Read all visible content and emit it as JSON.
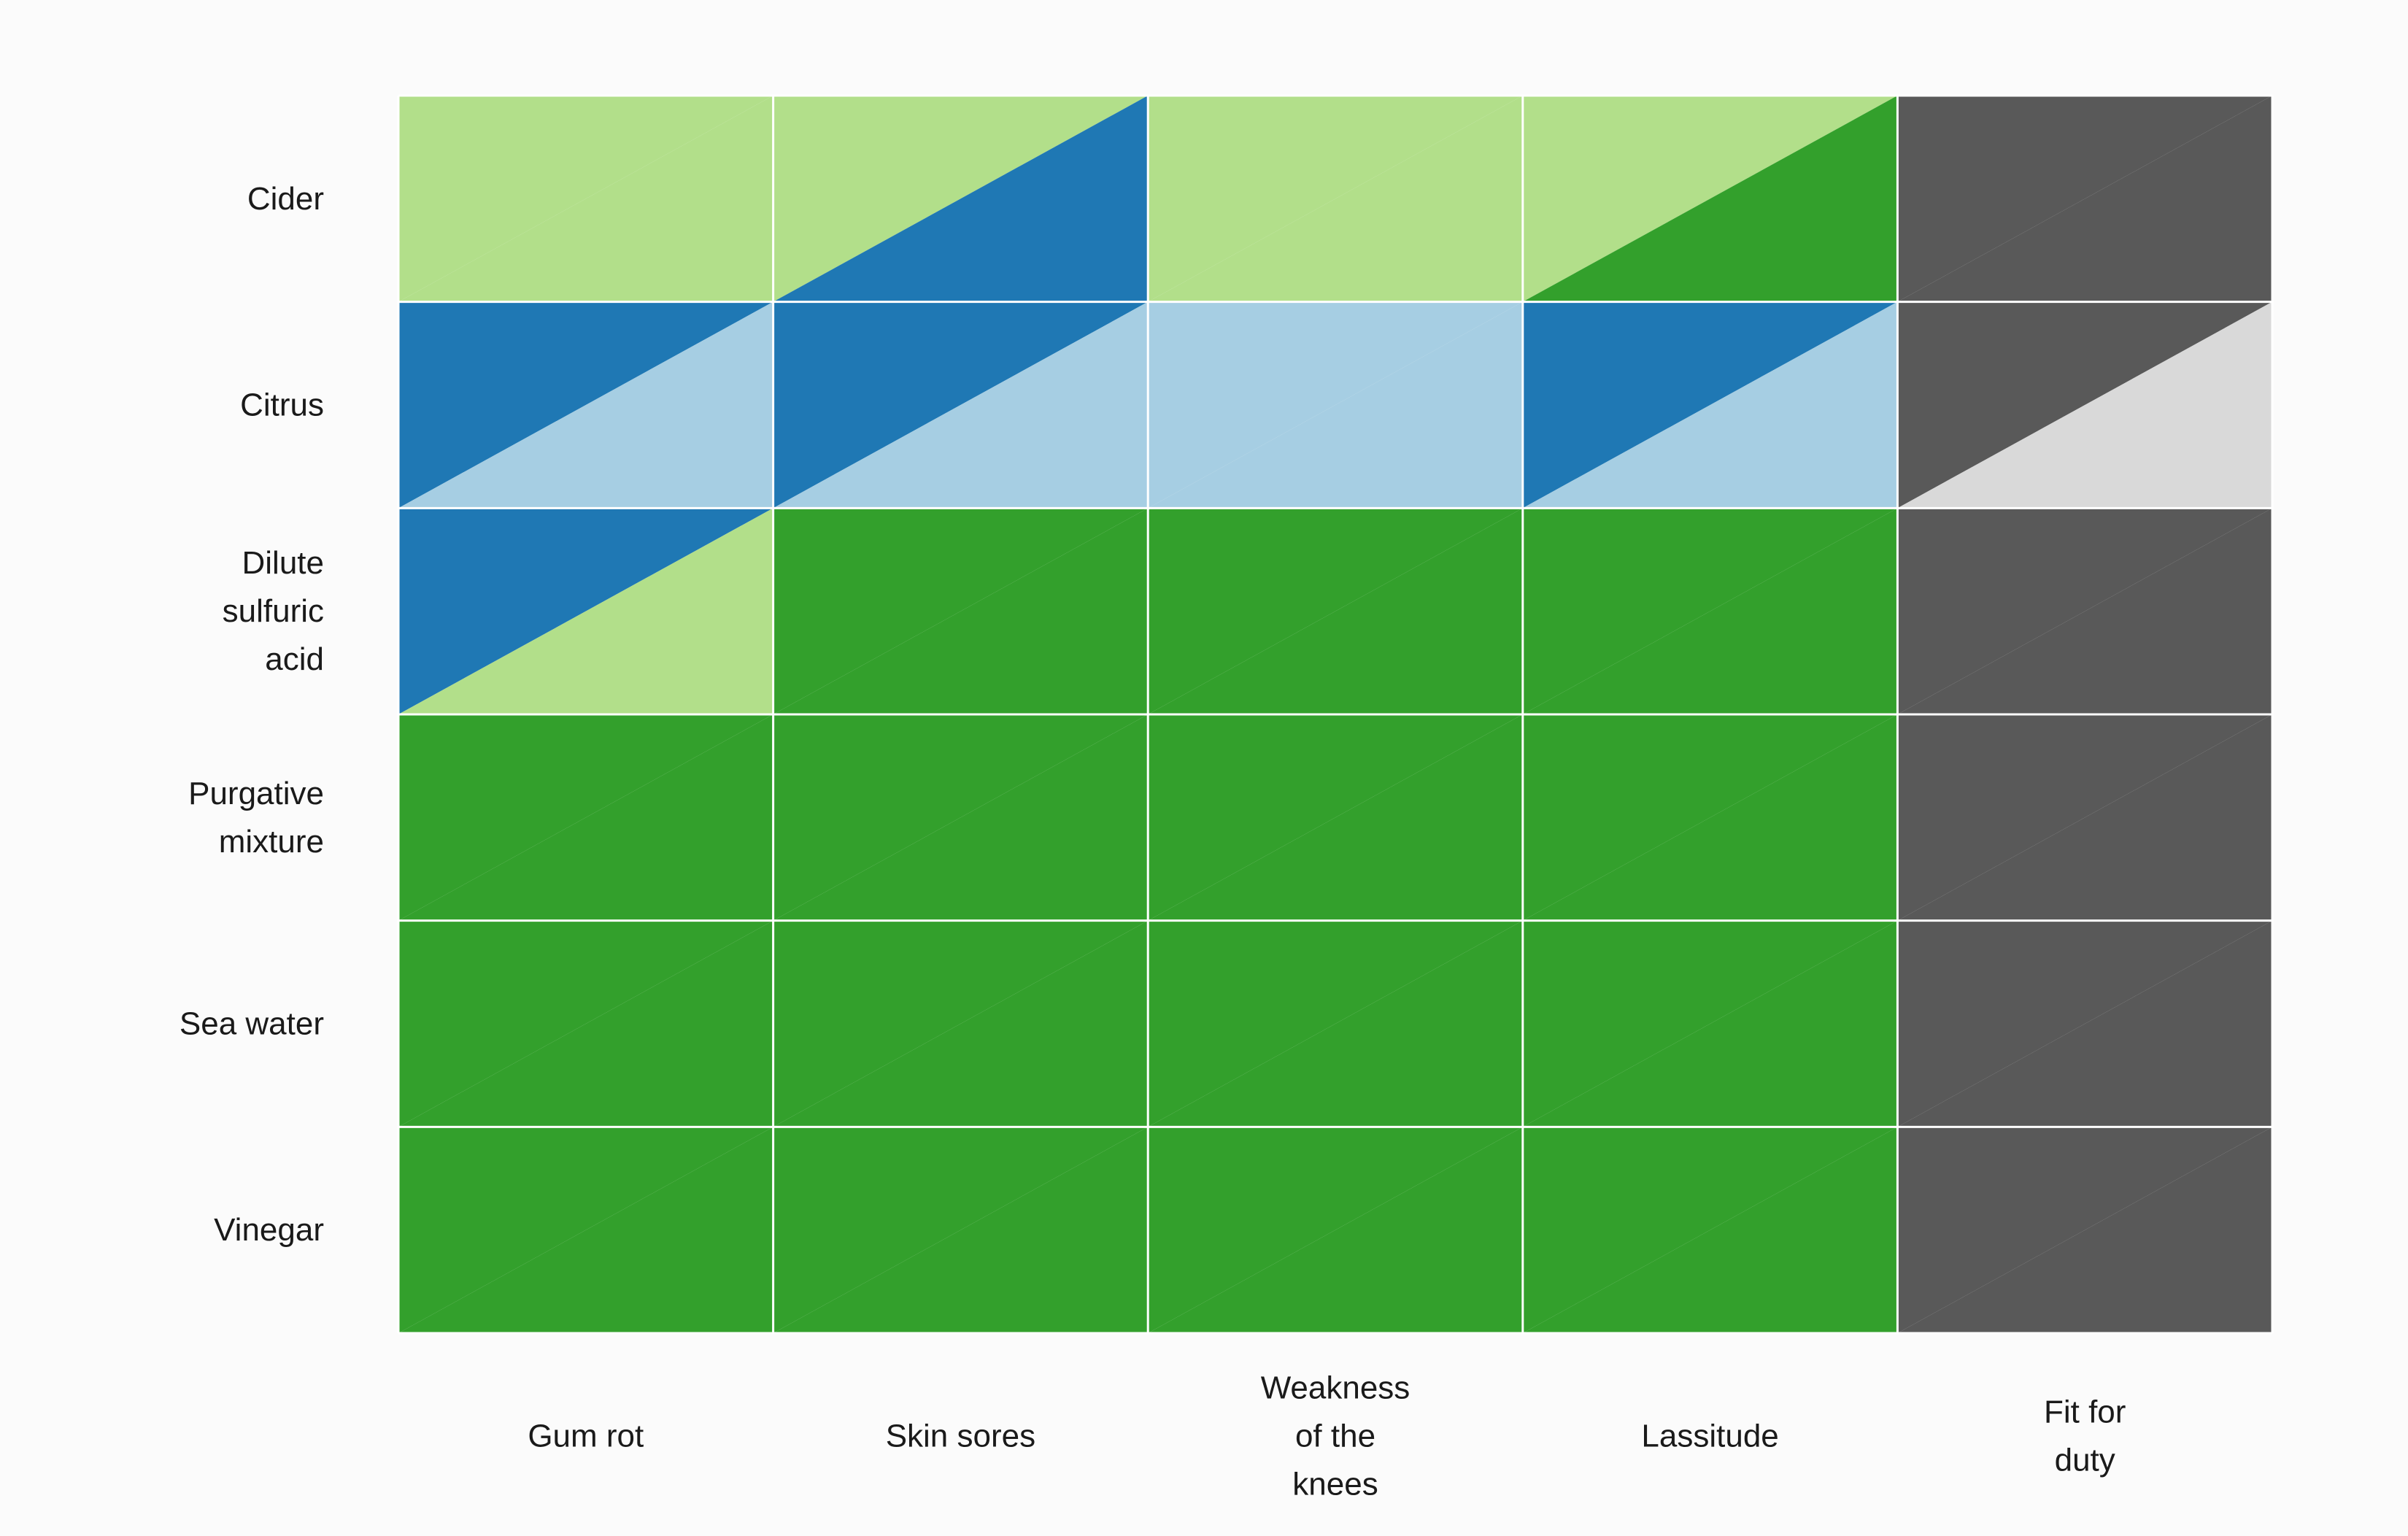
{
  "chart_data": {
    "type": "heatmap",
    "title": "",
    "xlabel": "",
    "ylabel": "",
    "legend": "none",
    "grid": true,
    "rows": [
      "Cider",
      "Citrus",
      "Dilute sulfuric acid",
      "Purgative mixture",
      "Sea water",
      "Vinegar"
    ],
    "row_label_lines": [
      [
        "Cider"
      ],
      [
        "Citrus"
      ],
      [
        "Dilute",
        "sulfuric",
        "acid"
      ],
      [
        "Purgative",
        "mixture"
      ],
      [
        "Sea water"
      ],
      [
        "Vinegar"
      ]
    ],
    "columns": [
      "Gum rot",
      "Skin sores",
      "Weakness of the knees",
      "Lassitude",
      "Fit for duty"
    ],
    "column_label_lines": [
      [
        "Gum rot"
      ],
      [
        "Skin sores"
      ],
      [
        "Weakness",
        "of the",
        "knees"
      ],
      [
        "Lassitude"
      ],
      [
        "Fit for",
        "duty"
      ]
    ],
    "cell_split": "each cell shows two colors: upper-left triangle and lower-right triangle",
    "colors": {
      "light_green": "#b2df8a",
      "dark_green": "#33a02c",
      "dark_blue": "#1f78b4",
      "light_blue": "#a6cee3",
      "dark_gray": "#595959",
      "light_gray": "#d9d9d9",
      "grid_line": "#ffffff",
      "background": "#fbfbfb"
    },
    "cells": [
      [
        {
          "upper": "light_green",
          "lower": "light_green"
        },
        {
          "upper": "light_green",
          "lower": "dark_blue"
        },
        {
          "upper": "light_green",
          "lower": "light_green"
        },
        {
          "upper": "light_green",
          "lower": "dark_green"
        },
        {
          "upper": "dark_gray",
          "lower": "dark_gray"
        }
      ],
      [
        {
          "upper": "dark_blue",
          "lower": "light_blue"
        },
        {
          "upper": "dark_blue",
          "lower": "light_blue"
        },
        {
          "upper": "light_blue",
          "lower": "light_blue"
        },
        {
          "upper": "dark_blue",
          "lower": "light_blue"
        },
        {
          "upper": "dark_gray",
          "lower": "light_gray"
        }
      ],
      [
        {
          "upper": "dark_blue",
          "lower": "light_green"
        },
        {
          "upper": "dark_green",
          "lower": "dark_green"
        },
        {
          "upper": "dark_green",
          "lower": "dark_green"
        },
        {
          "upper": "dark_green",
          "lower": "dark_green"
        },
        {
          "upper": "dark_gray",
          "lower": "dark_gray"
        }
      ],
      [
        {
          "upper": "dark_green",
          "lower": "dark_green"
        },
        {
          "upper": "dark_green",
          "lower": "dark_green"
        },
        {
          "upper": "dark_green",
          "lower": "dark_green"
        },
        {
          "upper": "dark_green",
          "lower": "dark_green"
        },
        {
          "upper": "dark_gray",
          "lower": "dark_gray"
        }
      ],
      [
        {
          "upper": "dark_green",
          "lower": "dark_green"
        },
        {
          "upper": "dark_green",
          "lower": "dark_green"
        },
        {
          "upper": "dark_green",
          "lower": "dark_green"
        },
        {
          "upper": "dark_green",
          "lower": "dark_green"
        },
        {
          "upper": "dark_gray",
          "lower": "dark_gray"
        }
      ],
      [
        {
          "upper": "dark_green",
          "lower": "dark_green"
        },
        {
          "upper": "dark_green",
          "lower": "dark_green"
        },
        {
          "upper": "dark_green",
          "lower": "dark_green"
        },
        {
          "upper": "dark_green",
          "lower": "dark_green"
        },
        {
          "upper": "dark_gray",
          "lower": "dark_gray"
        }
      ]
    ]
  }
}
